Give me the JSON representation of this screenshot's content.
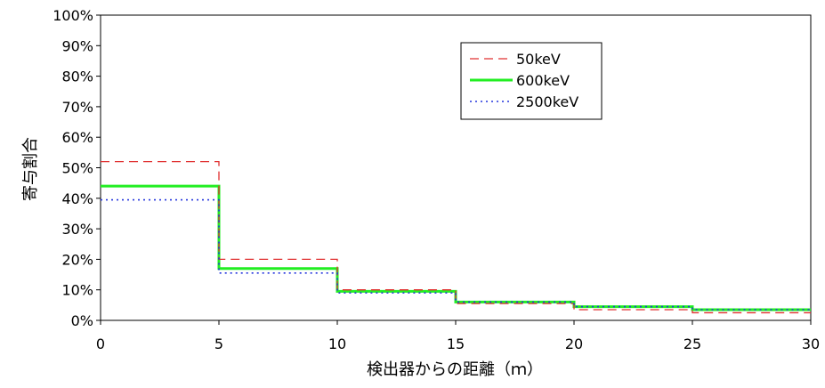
{
  "chart_data": {
    "type": "line",
    "step": true,
    "xlabel": "検出器からの距離（ｍ）",
    "ylabel": "寄与割合",
    "xlim": [
      0,
      30
    ],
    "ylim": [
      0,
      100
    ],
    "x_ticks": [
      "0",
      "5",
      "10",
      "15",
      "20",
      "25",
      "30"
    ],
    "y_ticks": [
      "0%",
      "10%",
      "20%",
      "30%",
      "40%",
      "50%",
      "60%",
      "70%",
      "80%",
      "90%",
      "100%"
    ],
    "bins": [
      [
        0,
        5
      ],
      [
        5,
        10
      ],
      [
        10,
        15
      ],
      [
        15,
        20
      ],
      [
        20,
        25
      ],
      [
        25,
        30
      ]
    ],
    "legend_position": "top-right",
    "grid": false,
    "series": [
      {
        "name": "50keV",
        "color": "#e03030",
        "style": "dashed",
        "values": [
          52,
          20,
          10,
          5.5,
          3.5,
          2.5
        ]
      },
      {
        "name": "600keV",
        "color": "#22ee22",
        "style": "solid",
        "values": [
          44,
          17,
          9.5,
          6,
          4.5,
          3.5
        ]
      },
      {
        "name": "2500keV",
        "color": "#2233dd",
        "style": "dotted",
        "values": [
          39.5,
          15.5,
          9,
          6,
          4.5,
          3.5
        ]
      }
    ]
  }
}
